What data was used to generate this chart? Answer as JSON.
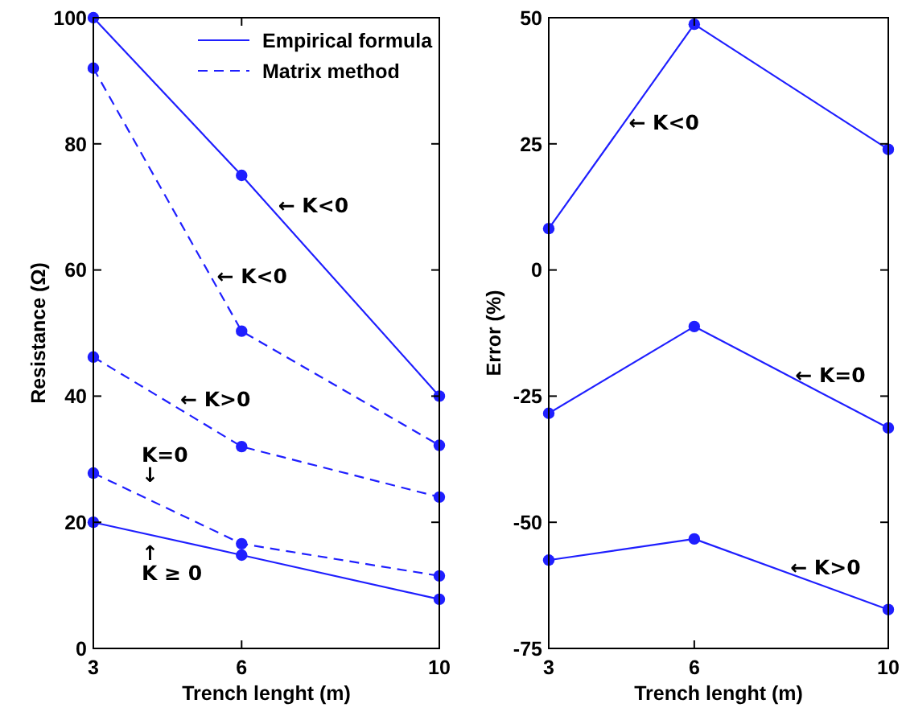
{
  "chart_data": [
    {
      "type": "line",
      "xlabel": "Trench lenght (m)",
      "ylabel": "Resistance (Ω)",
      "x": [
        3,
        6,
        10
      ],
      "xlim": [
        3,
        10
      ],
      "xticks": [
        3,
        6,
        10
      ],
      "ylim": [
        0,
        100
      ],
      "yticks": [
        0,
        20,
        40,
        60,
        80,
        100
      ],
      "legend": "top right",
      "marker": "circle",
      "series": [
        {
          "name": "Empirical formula",
          "color": "#1f1fff",
          "line_style": "solid",
          "values": [
            100,
            75,
            40
          ]
        },
        {
          "name": "Matrix method",
          "color": "#1f1fff",
          "line_style": "dashed",
          "values": [
            92,
            50.3,
            32.2
          ]
        },
        {
          "color": "#1f1fff",
          "line_style": "dashed",
          "values": [
            46.2,
            32,
            24
          ]
        },
        {
          "color": "#1f1fff",
          "line_style": "dashed",
          "values": [
            27.8,
            16.6,
            11.5
          ]
        },
        {
          "color": "#1f1fff",
          "line_style": "solid",
          "values": [
            20,
            14.8,
            7.8
          ]
        }
      ],
      "annotations": [
        {
          "text": "← K<0",
          "x": 6.74,
          "y": 70.2
        },
        {
          "text": "← K<0",
          "x": 5.5,
          "y": 59
        },
        "← K>0",
        "K=0\n↓",
        "↑\nK ≥ 0"
      ]
    },
    {
      "type": "line",
      "xlabel": "Trench lenght (m)",
      "ylabel": "Error (%)",
      "x": [
        3,
        6,
        10
      ],
      "xlim": [
        3,
        10
      ],
      "xticks": [
        3,
        6,
        10
      ],
      "ylim": [
        -75,
        50
      ],
      "yticks": [
        -75,
        -50,
        -25,
        0,
        25,
        50
      ],
      "marker": "circle",
      "series": [
        {
          "color": "#1f1fff",
          "line_style": "solid",
          "values": [
            8.2,
            48.7,
            23.9
          ]
        },
        {
          "color": "#1f1fff",
          "line_style": "solid",
          "values": [
            -28.4,
            -11.2,
            -31.3
          ]
        },
        {
          "color": "#1f1fff",
          "line_style": "solid",
          "values": [
            -57.5,
            -53.3,
            -67.3
          ]
        }
      ],
      "annotations": [
        {
          "text": "← K<0",
          "x": 4.65,
          "y": 29.3
        },
        {
          "text": "← K=0",
          "x": 8.08,
          "y": -20.8
        },
        {
          "text": "← K>0",
          "x": 7.98,
          "y": -59
        }
      ]
    }
  ]
}
